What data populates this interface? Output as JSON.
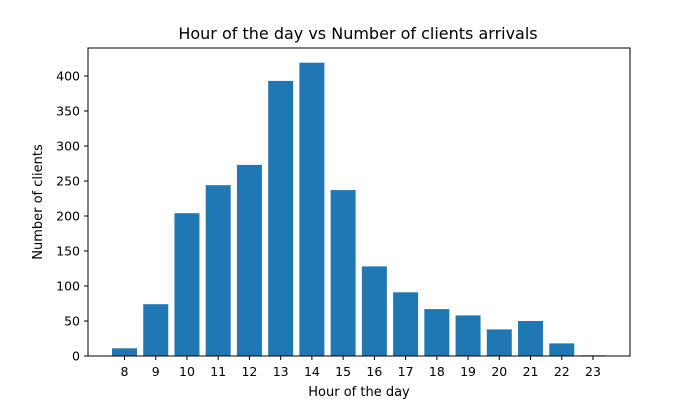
{
  "chart_data": {
    "type": "bar",
    "title": "Hour of the day vs Number of clients arrivals",
    "xlabel": "Hour of the day",
    "ylabel": "Number of clients",
    "categories": [
      "8",
      "9",
      "10",
      "11",
      "12",
      "13",
      "14",
      "15",
      "16",
      "17",
      "18",
      "19",
      "20",
      "21",
      "22",
      "23"
    ],
    "values": [
      11,
      74,
      204,
      244,
      273,
      393,
      419,
      237,
      128,
      91,
      67,
      58,
      38,
      50,
      18,
      1
    ],
    "y_ticks": [
      0,
      50,
      100,
      150,
      200,
      250,
      300,
      350,
      400
    ],
    "ylim": [
      0,
      440
    ],
    "bar_color": "#1f77b4",
    "grid": false,
    "legend": "none"
  }
}
